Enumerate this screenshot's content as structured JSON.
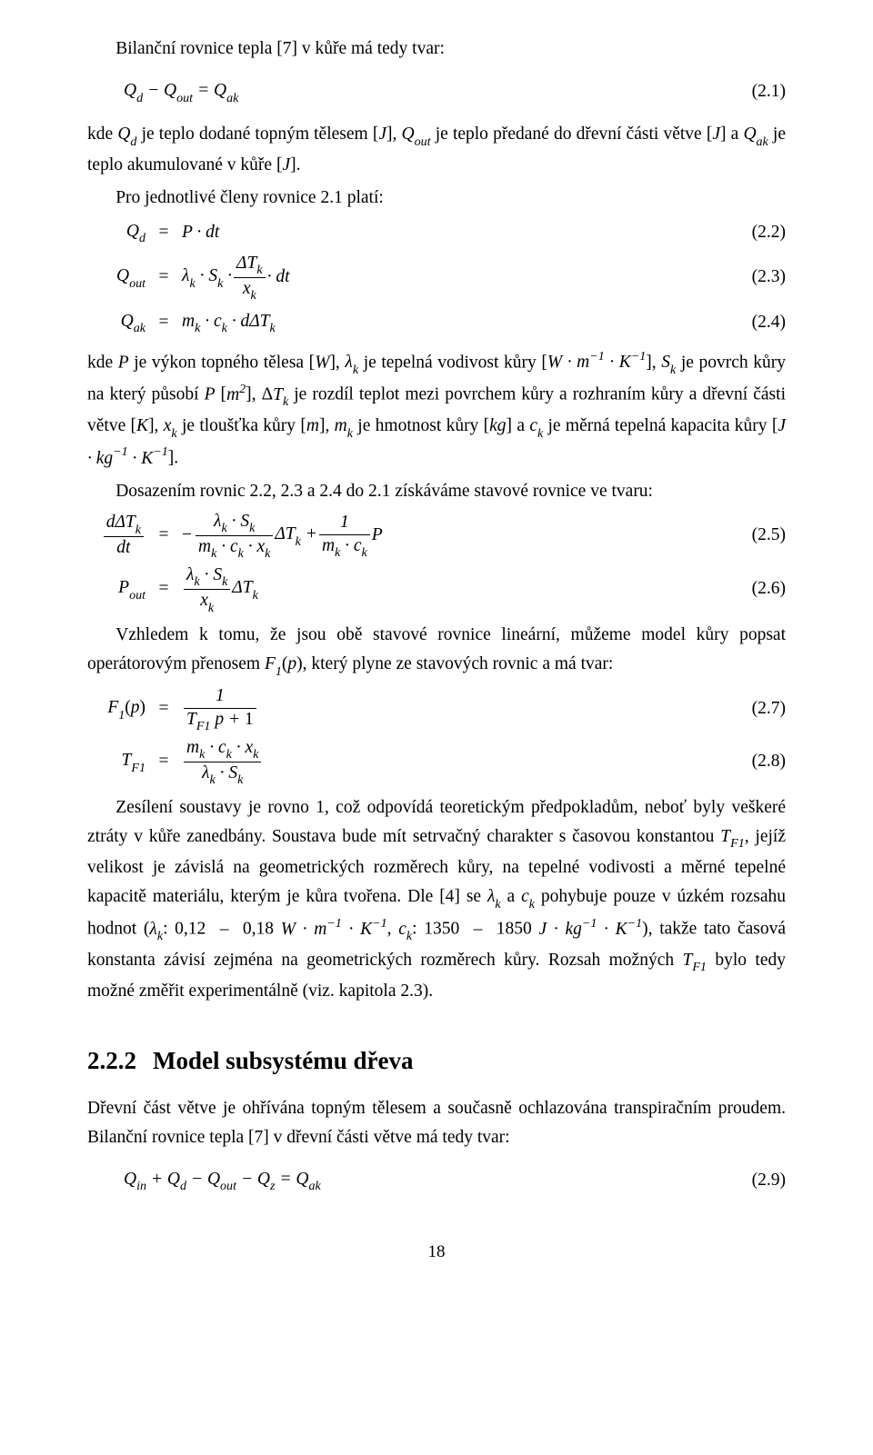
{
  "p1": "Bilanční rovnice tepla [7] v kůře má tedy tvar:",
  "eq1": {
    "body": "Q<sub>d</sub> − Q<sub>out</sub> = Q<sub>ak</sub>",
    "num": "(2.1)"
  },
  "p2": "kde <span class='it'>Q<span class='sub'>d</span></span> je teplo dodané topným tělesem [<span class='it'>J</span>], <span class='it'>Q<span class='sub'>out</span></span> je teplo předané do dřevní části větve [<span class='it'>J</span>] a <span class='it'>Q<span class='sub'>ak</span></span> je teplo akumulované v kůře [<span class='it'>J</span>].",
  "p3": "Pro jednotlivé členy rovnice 2.1 platí:",
  "eqgrp1": {
    "r1": {
      "l": "Q<span class='sub'>d</span>",
      "r": "P · dt",
      "num": "(2.2)"
    },
    "r2": {
      "l": "Q<span class='sub'>out</span>",
      "r_pre": "λ<span class='sub'>k</span> · S<span class='sub'>k</span> · ",
      "frac_num": "ΔT<span class='sub'>k</span>",
      "frac_den": "x<span class='sub'>k</span>",
      "r_post": " · dt",
      "num": "(2.3)"
    },
    "r3": {
      "l": "Q<span class='sub'>ak</span>",
      "r": "m<span class='sub'>k</span> · c<span class='sub'>k</span> · dΔT<span class='sub'>k</span>",
      "num": "(2.4)"
    }
  },
  "p4": "kde <span class='it'>P</span> je výkon topného tělesa [<span class='it'>W</span>], <span class='it'>λ<span class='sub'>k</span></span> je tepelná vodivost kůry [<span class='it'>W · m<span class='sup'>−1</span> · K<span class='sup'>−1</span></span>], <span class='it'>S<span class='sub'>k</span></span> je povrch kůry na který působí <span class='it'>P</span> [<span class='it'>m<span class='sup'>2</span></span>], Δ<span class='it'>T<span class='sub'>k</span></span> je rozdíl teplot mezi povrchem kůry a rozhraním kůry a dřevní části větve [<span class='it'>K</span>], <span class='it'>x<span class='sub'>k</span></span> je tloušťka kůry [<span class='it'>m</span>], <span class='it'>m<span class='sub'>k</span></span> je hmotnost kůry [<span class='it'>kg</span>] a <span class='it'>c<span class='sub'>k</span></span> je měrná tepelná kapacita kůry [<span class='it'>J · kg<span class='sup'>−1</span> · K<span class='sup'>−1</span></span>].",
  "p5": "Dosazením rovnic 2.2, 2.3 a 2.4 do 2.1 získáváme stavové rovnice ve tvaru:",
  "eqgrp2": {
    "r1": {
      "l_num": "dΔT<span class='sub'>k</span>",
      "l_den": "dt",
      "f1_num": "λ<span class='sub'>k</span> · S<span class='sub'>k</span>",
      "f1_den": "m<span class='sub'>k</span> · c<span class='sub'>k</span> · x<span class='sub'>k</span>",
      "mid1": "ΔT<span class='sub'>k</span> + ",
      "f2_num": "1",
      "f2_den": "m<span class='sub'>k</span> · c<span class='sub'>k</span>",
      "mid2": "P",
      "num": "(2.5)"
    },
    "r2": {
      "l": "P<span class='sub'>out</span>",
      "f_num": "λ<span class='sub'>k</span> · S<span class='sub'>k</span>",
      "f_den": "x<span class='sub'>k</span>",
      "post": "ΔT<span class='sub'>k</span>",
      "num": "(2.6)"
    }
  },
  "p6": "Vzhledem k tomu, že jsou obě stavové rovnice lineární, můžeme model kůry popsat operátorovým přenosem <span class='it'>F<span class='sub'>1</span></span>(<span class='it'>p</span>), který plyne ze stavových rovnic a má tvar:",
  "eqgrp3": {
    "r1": {
      "l": "F<span class='sub'>1</span><span class='rm'>(</span>p<span class='rm'>)</span>",
      "f_num": "1",
      "f_den": "T<span class='sub'>F1</span> p + <span class='rm'>1</span>",
      "num": "(2.7)"
    },
    "r2": {
      "l": "T<span class='sub'>F1</span>",
      "f_num": "m<span class='sub'>k</span> · c<span class='sub'>k</span> · x<span class='sub'>k</span>",
      "f_den": "λ<span class='sub'>k</span> · S<span class='sub'>k</span>",
      "num": "(2.8)"
    }
  },
  "p7": "Zesílení soustavy je rovno 1, což odpovídá teoretickým předpokladům, neboť byly veškeré ztráty v kůře zanedbány. Soustava bude mít setrvačný charakter s časovou konstantou <span class='it'>T<span class='sub'>F1</span></span>, jejíž velikost je závislá na geometrických rozměrech kůry, na tepelné vodivosti a měrné tepelné kapacitě materiálu, kterým je kůra tvořena. Dle [4] se <span class='it'>λ<span class='sub'>k</span></span> a <span class='it'>c<span class='sub'>k</span></span> pohybuje pouze v úzkém rozsahu hodnot (<span class='it'>λ<span class='sub'>k</span></span>: 0,12 &nbsp;–&nbsp; 0,18 <span class='it'>W · m<span class='sup'>−1</span> · K<span class='sup'>−1</span></span>, <span class='it'>c<span class='sub'>k</span></span>: 1350 &nbsp;–&nbsp; 1850 <span class='it'>J · kg<span class='sup'>−1</span> · K<span class='sup'>−1</span></span>), takže tato časová konstanta závisí zejména na geometrických rozměrech kůry. Rozsah možných <span class='it'>T<span class='sub'>F1</span></span> bylo tedy možné změřit experimentálně (viz. kapitola 2.3).",
  "heading": {
    "num": "2.2.2",
    "title": "Model subsystému dřeva"
  },
  "p8": "Dřevní část větve je ohřívána topným tělesem a současně ochlazována transpiračním proudem. Bilanční rovnice tepla [7] v dřevní části větve má tedy tvar:",
  "eq9": {
    "body": "Q<span class='sub'>in</span> + Q<span class='sub'>d</span> − Q<span class='sub'>out</span> − Q<span class='sub'>z</span> = Q<span class='sub'>ak</span>",
    "num": "(2.9)"
  },
  "pagenum": "18"
}
